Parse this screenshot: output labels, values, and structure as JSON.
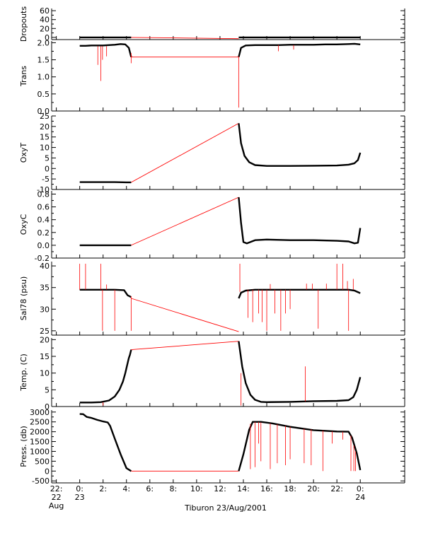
{
  "footer_title": "Tiburon 23/Aug/2001",
  "colors": {
    "data": "#000000",
    "interp": "#ff0000",
    "axis": "#000000"
  },
  "x_axis": {
    "xlim": [
      -2.4,
      27.8
    ],
    "ticks": [
      {
        "value": -2,
        "line1": "22:",
        "line2": "22",
        "line3": "Aug"
      },
      {
        "value": 0,
        "line1": "0:",
        "line2": "23",
        "line3": ""
      },
      {
        "value": 2,
        "line1": "2:",
        "line2": "",
        "line3": ""
      },
      {
        "value": 4,
        "line1": "4:",
        "line2": "",
        "line3": ""
      },
      {
        "value": 6,
        "line1": "6:",
        "line2": "",
        "line3": ""
      },
      {
        "value": 8,
        "line1": "8:",
        "line2": "",
        "line3": ""
      },
      {
        "value": 10,
        "line1": "10:",
        "line2": "",
        "line3": ""
      },
      {
        "value": 12,
        "line1": "12:",
        "line2": "",
        "line3": ""
      },
      {
        "value": 14,
        "line1": "14:",
        "line2": "",
        "line3": ""
      },
      {
        "value": 16,
        "line1": "16:",
        "line2": "",
        "line3": ""
      },
      {
        "value": 18,
        "line1": "18:",
        "line2": "",
        "line3": ""
      },
      {
        "value": 20,
        "line1": "20:",
        "line2": "",
        "line3": ""
      },
      {
        "value": 22,
        "line1": "22:",
        "line2": "",
        "line3": ""
      },
      {
        "value": 24,
        "line1": "0:",
        "line2": "24",
        "line3": ""
      }
    ]
  },
  "chart_data": [
    {
      "type": "line",
      "ylabel": "Dropouts",
      "ylim": [
        -5,
        65
      ],
      "yticks": [
        {
          "v": 60,
          "t": "60"
        },
        {
          "v": 40,
          "t": "40"
        },
        {
          "v": 20,
          "t": "20"
        },
        {
          "v": 0,
          "t": "0"
        }
      ],
      "segments": [
        {
          "x": [
            0,
            0.5,
            1,
            1.5,
            2,
            2.5,
            3,
            3.5,
            4,
            4.4
          ],
          "y": [
            0,
            0,
            0,
            0,
            0,
            0,
            0,
            0,
            0,
            0
          ],
          "color": "data"
        },
        {
          "x": [
            4.4,
            13.6
          ],
          "y": [
            0,
            -3
          ],
          "color": "interp"
        },
        {
          "x": [
            13.6,
            15,
            16,
            17,
            18,
            19,
            20,
            21,
            22,
            23,
            24
          ],
          "y": [
            0,
            0,
            0,
            0,
            0,
            0,
            0,
            0,
            0,
            0,
            0
          ],
          "color": "data"
        }
      ]
    },
    {
      "type": "line",
      "ylabel": "Trans",
      "ylim": [
        0,
        2.05
      ],
      "yticks": [
        {
          "v": 2.0,
          "t": "2.0"
        },
        {
          "v": 1.5,
          "t": "1.5"
        },
        {
          "v": 1.0,
          "t": "1.0"
        },
        {
          "v": 0.5,
          "t": "0.5"
        },
        {
          "v": 0.0,
          "t": "0.0"
        }
      ],
      "segments": [
        {
          "x": [
            0,
            0.5,
            1,
            1.5,
            2,
            2.5,
            3,
            3.5,
            3.9,
            4.2,
            4.4
          ],
          "y": [
            1.91,
            1.91,
            1.92,
            1.92,
            1.92,
            1.93,
            1.94,
            1.96,
            1.95,
            1.85,
            1.58
          ],
          "color": "data"
        },
        {
          "x": [
            4.4,
            13.6
          ],
          "y": [
            1.58,
            1.58
          ],
          "color": "interp"
        },
        {
          "x": [
            13.6,
            13.8,
            14.2,
            15,
            16,
            17,
            18,
            19,
            20,
            21,
            22,
            23,
            23.5,
            24
          ],
          "y": [
            1.58,
            1.85,
            1.92,
            1.93,
            1.93,
            1.93,
            1.94,
            1.94,
            1.94,
            1.95,
            1.95,
            1.96,
            1.97,
            1.95
          ],
          "color": "data"
        }
      ],
      "spikes": [
        {
          "x": 1.55,
          "y0": 1.9,
          "y1": 1.35
        },
        {
          "x": 1.8,
          "y0": 1.9,
          "y1": 0.88
        },
        {
          "x": 1.95,
          "y0": 1.9,
          "y1": 1.5
        },
        {
          "x": 2.3,
          "y0": 1.9,
          "y1": 1.6
        },
        {
          "x": 4.4,
          "y0": 1.7,
          "y1": 1.4
        },
        {
          "x": 13.6,
          "y0": 1.6,
          "y1": 0.1
        },
        {
          "x": 17,
          "y0": 1.93,
          "y1": 1.75
        },
        {
          "x": 18.3,
          "y0": 1.93,
          "y1": 1.8
        }
      ]
    },
    {
      "type": "line",
      "ylabel": "OxyT",
      "ylim": [
        -10,
        25
      ],
      "yticks": [
        {
          "v": 25,
          "t": "25"
        },
        {
          "v": 20,
          "t": "20"
        },
        {
          "v": 15,
          "t": "15"
        },
        {
          "v": 10,
          "t": "10"
        },
        {
          "v": 5,
          "t": "5"
        },
        {
          "v": 0,
          "t": "0"
        },
        {
          "v": -5,
          "t": "-5"
        },
        {
          "v": -10,
          "t": "-10"
        }
      ],
      "segments": [
        {
          "x": [
            0,
            1,
            2,
            3,
            4,
            4.4
          ],
          "y": [
            -6.5,
            -6.5,
            -6.5,
            -6.5,
            -6.6,
            -6.6
          ],
          "color": "data"
        },
        {
          "x": [
            4.4,
            13.6
          ],
          "y": [
            -6.6,
            21.5
          ],
          "color": "interp"
        },
        {
          "x": [
            13.6,
            13.8,
            14.1,
            14.5,
            15,
            16,
            18,
            20,
            22,
            23,
            23.5,
            23.8,
            24
          ],
          "y": [
            21.5,
            12,
            6,
            3,
            1.6,
            1.2,
            1.2,
            1.3,
            1.4,
            1.8,
            2.5,
            4,
            7.5
          ],
          "color": "data"
        }
      ],
      "spikes": []
    },
    {
      "type": "line",
      "ylabel": "OxyC",
      "ylim": [
        -0.2,
        0.85
      ],
      "yticks": [
        {
          "v": 0.8,
          "t": "0.8"
        },
        {
          "v": 0.6,
          "t": "0.6"
        },
        {
          "v": 0.4,
          "t": "0.4"
        },
        {
          "v": 0.2,
          "t": "0.2"
        },
        {
          "v": 0.0,
          "t": "0.0"
        },
        {
          "v": -0.2,
          "t": "-0.2"
        }
      ],
      "segments": [
        {
          "x": [
            0,
            1,
            2,
            3,
            4,
            4.4
          ],
          "y": [
            0.0,
            0.0,
            0.0,
            0.0,
            0.0,
            0.0
          ],
          "color": "data"
        },
        {
          "x": [
            4.4,
            13.6
          ],
          "y": [
            0.0,
            0.75
          ],
          "color": "interp"
        },
        {
          "x": [
            13.6,
            13.8,
            14.0,
            14.3,
            15,
            16,
            18,
            20,
            22,
            23,
            23.5,
            23.8,
            24
          ],
          "y": [
            0.75,
            0.35,
            0.05,
            0.03,
            0.08,
            0.09,
            0.08,
            0.08,
            0.07,
            0.06,
            0.03,
            0.04,
            0.27
          ],
          "color": "data"
        }
      ],
      "spikes": []
    },
    {
      "type": "line",
      "ylabel": "Sal78 (psu)",
      "ylim": [
        24,
        41
      ],
      "yticks": [
        {
          "v": 40,
          "t": "40"
        },
        {
          "v": 35,
          "t": "35"
        },
        {
          "v": 30,
          "t": "30"
        },
        {
          "v": 25,
          "t": "25"
        }
      ],
      "segments": [
        {
          "x": [
            0,
            1,
            2,
            3,
            3.8,
            4.1,
            4.4
          ],
          "y": [
            34.5,
            34.5,
            34.5,
            34.5,
            34.4,
            33.2,
            32.8
          ],
          "color": "data"
        },
        {
          "x": [
            4.4,
            13.6
          ],
          "y": [
            32.5,
            24.8
          ],
          "color": "interp"
        },
        {
          "x": [
            13.6,
            13.8,
            14.2,
            15,
            16,
            18,
            20,
            22,
            23,
            23.5,
            24
          ],
          "y": [
            32.5,
            33.8,
            34.3,
            34.5,
            34.5,
            34.5,
            34.5,
            34.5,
            34.5,
            34.3,
            33.7
          ],
          "color": "data"
        }
      ],
      "spikes": [
        {
          "x": 0,
          "y0": 34.5,
          "y1": 40.5
        },
        {
          "x": 0.5,
          "y0": 34.5,
          "y1": 40.5
        },
        {
          "x": 1.8,
          "y0": 34.5,
          "y1": 40.5
        },
        {
          "x": 1.95,
          "y0": 34.5,
          "y1": 25
        },
        {
          "x": 2.3,
          "y0": 34.5,
          "y1": 35.7
        },
        {
          "x": 3.0,
          "y0": 34.5,
          "y1": 25
        },
        {
          "x": 4.4,
          "y0": 33,
          "y1": 25
        },
        {
          "x": 13.7,
          "y0": 34,
          "y1": 40.5
        },
        {
          "x": 14.4,
          "y0": 34.5,
          "y1": 28
        },
        {
          "x": 14.8,
          "y0": 34.5,
          "y1": 27
        },
        {
          "x": 15.3,
          "y0": 34.5,
          "y1": 29
        },
        {
          "x": 15.6,
          "y0": 34.5,
          "y1": 27
        },
        {
          "x": 16.0,
          "y0": 34.5,
          "y1": 25
        },
        {
          "x": 16.3,
          "y0": 34.5,
          "y1": 35.8
        },
        {
          "x": 16.7,
          "y0": 34.5,
          "y1": 29
        },
        {
          "x": 17.2,
          "y0": 34.5,
          "y1": 25
        },
        {
          "x": 17.6,
          "y0": 34.5,
          "y1": 29
        },
        {
          "x": 18.0,
          "y0": 34.5,
          "y1": 30
        },
        {
          "x": 19.4,
          "y0": 34.5,
          "y1": 35.9
        },
        {
          "x": 19.9,
          "y0": 34.5,
          "y1": 35.9
        },
        {
          "x": 20.4,
          "y0": 34.5,
          "y1": 25.5
        },
        {
          "x": 21.1,
          "y0": 34.5,
          "y1": 35.9
        },
        {
          "x": 22.0,
          "y0": 34.5,
          "y1": 40.5
        },
        {
          "x": 22.5,
          "y0": 34.5,
          "y1": 40.5
        },
        {
          "x": 22.9,
          "y0": 34.5,
          "y1": 36.5
        },
        {
          "x": 23.4,
          "y0": 34.5,
          "y1": 37
        },
        {
          "x": 23.0,
          "y0": 34.5,
          "y1": 25
        }
      ]
    },
    {
      "type": "line",
      "ylabel": "Temp. (C)",
      "ylim": [
        0,
        20.5
      ],
      "yticks": [
        {
          "v": 20,
          "t": "20"
        },
        {
          "v": 15,
          "t": "15"
        },
        {
          "v": 10,
          "t": "10"
        },
        {
          "v": 5,
          "t": "5"
        },
        {
          "v": 0,
          "t": "0"
        }
      ],
      "segments": [
        {
          "x": [
            0,
            1,
            1.8,
            2.5,
            3.0,
            3.4,
            3.7,
            3.9,
            4.1,
            4.2,
            4.3,
            4.4
          ],
          "y": [
            1.2,
            1.2,
            1.3,
            1.8,
            3.0,
            5.0,
            7.5,
            10,
            13,
            14.5,
            15.5,
            17
          ],
          "color": "data"
        },
        {
          "x": [
            4.4,
            13.6
          ],
          "y": [
            17,
            19.5
          ],
          "color": "interp"
        },
        {
          "x": [
            13.6,
            13.9,
            14.2,
            14.6,
            15,
            15.5,
            16,
            18,
            20,
            22,
            23,
            23.4,
            23.7,
            24
          ],
          "y": [
            19.5,
            12,
            7,
            3.5,
            2.0,
            1.4,
            1.3,
            1.4,
            1.6,
            1.7,
            1.9,
            2.8,
            5,
            8.8
          ],
          "color": "data"
        }
      ],
      "spikes": [
        {
          "x": 2.0,
          "y0": 1.3,
          "y1": 0.3
        },
        {
          "x": 13.8,
          "y0": 10,
          "y1": 0.3
        },
        {
          "x": 19.3,
          "y0": 1.5,
          "y1": 12
        }
      ]
    },
    {
      "type": "line",
      "ylabel": "Press. (db)",
      "ylim": [
        -600,
        3100
      ],
      "yticks": [
        {
          "v": 3000,
          "t": "3000"
        },
        {
          "v": 2500,
          "t": "2500"
        },
        {
          "v": 2000,
          "t": "2000"
        },
        {
          "v": 1500,
          "t": "1500"
        },
        {
          "v": 1000,
          "t": "1000"
        },
        {
          "v": 500,
          "t": "500"
        },
        {
          "v": 0,
          "t": "0"
        },
        {
          "v": -500,
          "t": "-500"
        }
      ],
      "segments": [
        {
          "x": [
            0,
            0.3,
            0.6,
            1.0,
            1.5,
            2.0,
            2.4,
            2.6,
            3.0,
            3.5,
            4.0,
            4.4
          ],
          "y": [
            2900,
            2890,
            2750,
            2700,
            2600,
            2520,
            2470,
            2300,
            1650,
            850,
            150,
            0
          ],
          "color": "data"
        },
        {
          "x": [
            4.4,
            13.6
          ],
          "y": [
            0,
            0
          ],
          "color": "interp"
        },
        {
          "x": [
            13.6,
            14.0,
            14.5,
            14.8,
            15.5,
            16.5,
            18,
            20,
            22,
            23,
            23.3,
            23.7,
            24
          ],
          "y": [
            0,
            850,
            2100,
            2500,
            2500,
            2420,
            2250,
            2080,
            2010,
            2000,
            1700,
            900,
            50
          ],
          "color": "data"
        }
      ],
      "spikes": [
        {
          "x": 14.6,
          "y0": 2400,
          "y1": 100
        },
        {
          "x": 15.0,
          "y0": 2500,
          "y1": 200
        },
        {
          "x": 15.3,
          "y0": 2500,
          "y1": 1400
        },
        {
          "x": 15.5,
          "y0": 2480,
          "y1": 500
        },
        {
          "x": 16.3,
          "y0": 2420,
          "y1": 100
        },
        {
          "x": 16.9,
          "y0": 2380,
          "y1": 400
        },
        {
          "x": 17.6,
          "y0": 2300,
          "y1": 300
        },
        {
          "x": 18.0,
          "y0": 2250,
          "y1": 600
        },
        {
          "x": 19.2,
          "y0": 2150,
          "y1": 400
        },
        {
          "x": 19.8,
          "y0": 2120,
          "y1": 300
        },
        {
          "x": 20.8,
          "y0": 2060,
          "y1": 0
        },
        {
          "x": 21.6,
          "y0": 2020,
          "y1": 1400
        },
        {
          "x": 22.5,
          "y0": 2000,
          "y1": 1600
        },
        {
          "x": 23.2,
          "y0": 1800,
          "y1": 0
        },
        {
          "x": 23.45,
          "y0": 1300,
          "y1": 0
        },
        {
          "x": 23.6,
          "y0": 1000,
          "y1": 0
        }
      ]
    }
  ]
}
